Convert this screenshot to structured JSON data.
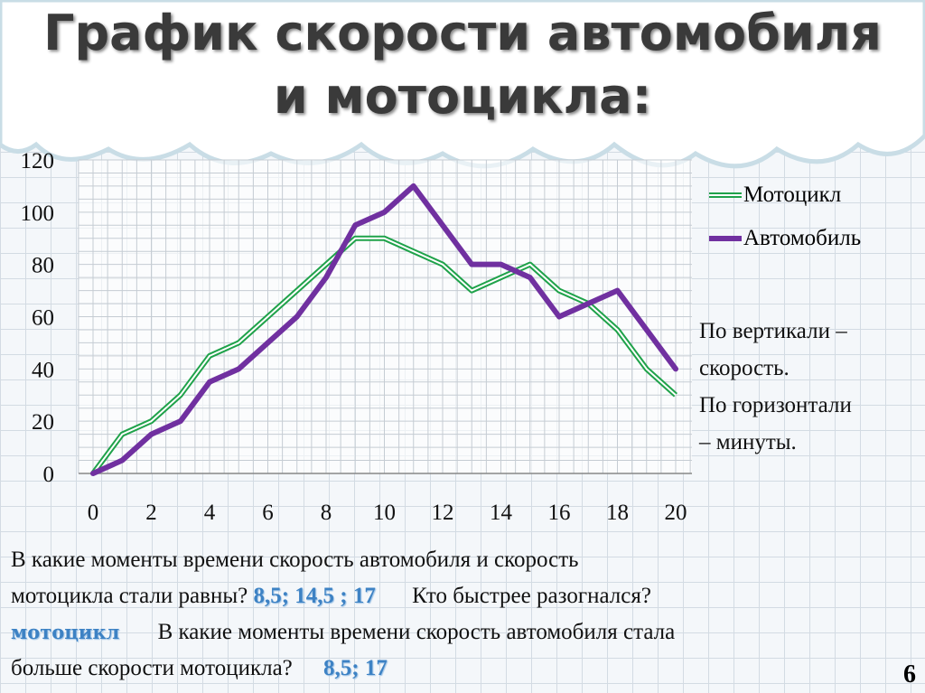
{
  "title_lines": [
    "График скорости автомобиля",
    "и мотоцикла:"
  ],
  "chart_data": {
    "type": "line",
    "x": [
      0,
      1,
      2,
      3,
      4,
      5,
      6,
      7,
      8,
      9,
      10,
      11,
      12,
      13,
      14,
      15,
      16,
      17,
      18,
      19,
      20
    ],
    "series": [
      {
        "name": "Мотоцикл",
        "color": "#1fa24a",
        "style": "double-line",
        "values": [
          0,
          15,
          20,
          30,
          45,
          50,
          60,
          70,
          80,
          90,
          90,
          85,
          80,
          70,
          75,
          80,
          70,
          65,
          55,
          40,
          30
        ]
      },
      {
        "name": "Автомобиль",
        "color": "#7030a0",
        "style": "thick",
        "values": [
          0,
          5,
          15,
          20,
          35,
          40,
          50,
          60,
          75,
          95,
          100,
          110,
          95,
          80,
          80,
          75,
          60,
          65,
          70,
          55,
          40
        ]
      }
    ],
    "xticks": [
      "0",
      "2",
      "4",
      "6",
      "8",
      "10",
      "12",
      "14",
      "16",
      "18",
      "20"
    ],
    "yticks": [
      "0",
      "20",
      "40",
      "60",
      "80",
      "100",
      "120"
    ],
    "xlim": [
      0,
      20
    ],
    "ylim": [
      0,
      120
    ],
    "grid": true,
    "legend": "right"
  },
  "note_lines": [
    "По вертикали –",
    "скорость.",
    "По горизонтали",
    "– минуты."
  ],
  "questions": {
    "q1a": "В какие моменты времени скорость автомобиля и скорость",
    "q1b": "мотоцикла стали равны?",
    "a1": "8,5; 14,5 ; 17",
    "q2": "Кто быстрее разогнался?",
    "a2": "мотоцикл",
    "q3a": "В какие моменты времени скорость автомобиля стала",
    "q3b": "больше скорости мотоцикла?",
    "a3": "8,5; 17"
  },
  "page_number": "6"
}
